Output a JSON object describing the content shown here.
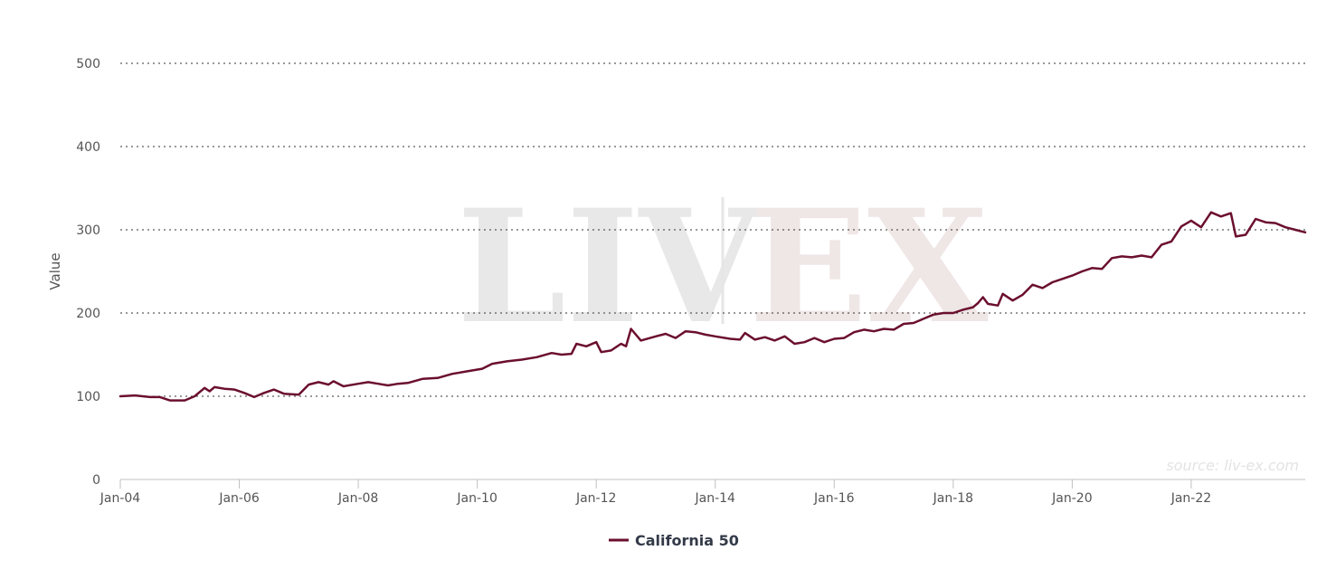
{
  "colors": {
    "series": "#6b0f2e",
    "watermark_left": "#e8e8e8",
    "watermark_right": "#efe6e6"
  },
  "watermark": {
    "left": "LIV",
    "right": "EX"
  },
  "source_text": "source: liv-ex.com",
  "chart_data": {
    "type": "line",
    "title": "",
    "xlabel": "",
    "ylabel": "Value",
    "ylim": [
      0,
      500
    ],
    "yticks": [
      0,
      100,
      200,
      300,
      400,
      500
    ],
    "xlim": [
      "2004-01",
      "2023-12"
    ],
    "xticks": [
      "2004-01",
      "2006-01",
      "2008-01",
      "2010-01",
      "2012-01",
      "2014-01",
      "2016-01",
      "2018-01",
      "2020-01",
      "2022-01"
    ],
    "xtick_labels": [
      "Jan-04",
      "Jan-06",
      "Jan-08",
      "Jan-10",
      "Jan-12",
      "Jan-14",
      "Jan-16",
      "Jan-18",
      "Jan-20",
      "Jan-22"
    ],
    "grid": true,
    "legend": "bottom-center",
    "series": [
      {
        "name": "California 50",
        "points": [
          [
            "2004-01",
            100
          ],
          [
            "2004-04",
            101
          ],
          [
            "2004-07",
            99
          ],
          [
            "2004-09",
            99
          ],
          [
            "2004-11",
            95
          ],
          [
            "2005-02",
            95
          ],
          [
            "2005-04",
            100
          ],
          [
            "2005-06",
            110
          ],
          [
            "2005-07",
            106
          ],
          [
            "2005-08",
            111
          ],
          [
            "2005-10",
            109
          ],
          [
            "2005-12",
            108
          ],
          [
            "2006-02",
            104
          ],
          [
            "2006-04",
            99
          ],
          [
            "2006-06",
            104
          ],
          [
            "2006-08",
            108
          ],
          [
            "2006-10",
            103
          ],
          [
            "2007-01",
            102
          ],
          [
            "2007-03",
            114
          ],
          [
            "2007-05",
            117
          ],
          [
            "2007-07",
            114
          ],
          [
            "2007-08",
            118
          ],
          [
            "2007-10",
            112
          ],
          [
            "2008-01",
            115
          ],
          [
            "2008-03",
            117
          ],
          [
            "2008-05",
            115
          ],
          [
            "2008-07",
            113
          ],
          [
            "2008-09",
            115
          ],
          [
            "2008-11",
            116
          ],
          [
            "2009-02",
            121
          ],
          [
            "2009-05",
            122
          ],
          [
            "2009-08",
            127
          ],
          [
            "2009-11",
            130
          ],
          [
            "2010-02",
            133
          ],
          [
            "2010-04",
            139
          ],
          [
            "2010-07",
            142
          ],
          [
            "2010-10",
            144
          ],
          [
            "2011-01",
            147
          ],
          [
            "2011-04",
            152
          ],
          [
            "2011-06",
            150
          ],
          [
            "2011-08",
            151
          ],
          [
            "2011-09",
            163
          ],
          [
            "2011-11",
            160
          ],
          [
            "2012-01",
            165
          ],
          [
            "2012-02",
            153
          ],
          [
            "2012-04",
            155
          ],
          [
            "2012-06",
            163
          ],
          [
            "2012-07",
            160
          ],
          [
            "2012-08",
            181
          ],
          [
            "2012-10",
            167
          ],
          [
            "2013-01",
            172
          ],
          [
            "2013-03",
            175
          ],
          [
            "2013-05",
            170
          ],
          [
            "2013-07",
            178
          ],
          [
            "2013-09",
            177
          ],
          [
            "2013-11",
            174
          ],
          [
            "2014-01",
            172
          ],
          [
            "2014-04",
            169
          ],
          [
            "2014-06",
            168
          ],
          [
            "2014-07",
            176
          ],
          [
            "2014-09",
            168
          ],
          [
            "2014-11",
            171
          ],
          [
            "2015-01",
            167
          ],
          [
            "2015-03",
            172
          ],
          [
            "2015-05",
            163
          ],
          [
            "2015-07",
            165
          ],
          [
            "2015-09",
            170
          ],
          [
            "2015-11",
            165
          ],
          [
            "2016-01",
            169
          ],
          [
            "2016-03",
            170
          ],
          [
            "2016-05",
            177
          ],
          [
            "2016-07",
            180
          ],
          [
            "2016-09",
            178
          ],
          [
            "2016-11",
            181
          ],
          [
            "2017-01",
            180
          ],
          [
            "2017-03",
            187
          ],
          [
            "2017-05",
            188
          ],
          [
            "2017-07",
            193
          ],
          [
            "2017-09",
            198
          ],
          [
            "2017-11",
            200
          ],
          [
            "2018-01",
            200
          ],
          [
            "2018-03",
            204
          ],
          [
            "2018-05",
            207
          ],
          [
            "2018-06",
            212
          ],
          [
            "2018-07",
            219
          ],
          [
            "2018-08",
            211
          ],
          [
            "2018-10",
            209
          ],
          [
            "2018-11",
            223
          ],
          [
            "2019-01",
            215
          ],
          [
            "2019-03",
            222
          ],
          [
            "2019-05",
            234
          ],
          [
            "2019-07",
            230
          ],
          [
            "2019-09",
            237
          ],
          [
            "2019-11",
            241
          ],
          [
            "2020-01",
            245
          ],
          [
            "2020-03",
            250
          ],
          [
            "2020-05",
            254
          ],
          [
            "2020-07",
            253
          ],
          [
            "2020-09",
            266
          ],
          [
            "2020-11",
            268
          ],
          [
            "2021-01",
            267
          ],
          [
            "2021-03",
            269
          ],
          [
            "2021-05",
            267
          ],
          [
            "2021-07",
            282
          ],
          [
            "2021-09",
            286
          ],
          [
            "2021-11",
            304
          ],
          [
            "2022-01",
            311
          ],
          [
            "2022-03",
            303
          ],
          [
            "2022-05",
            321
          ],
          [
            "2022-07",
            316
          ],
          [
            "2022-09",
            320
          ],
          [
            "2022-10",
            292
          ],
          [
            "2022-12",
            294
          ],
          [
            "2023-02",
            313
          ],
          [
            "2023-04",
            309
          ],
          [
            "2023-06",
            308
          ],
          [
            "2023-08",
            303
          ],
          [
            "2023-10",
            300
          ],
          [
            "2023-12",
            297
          ]
        ]
      }
    ]
  }
}
